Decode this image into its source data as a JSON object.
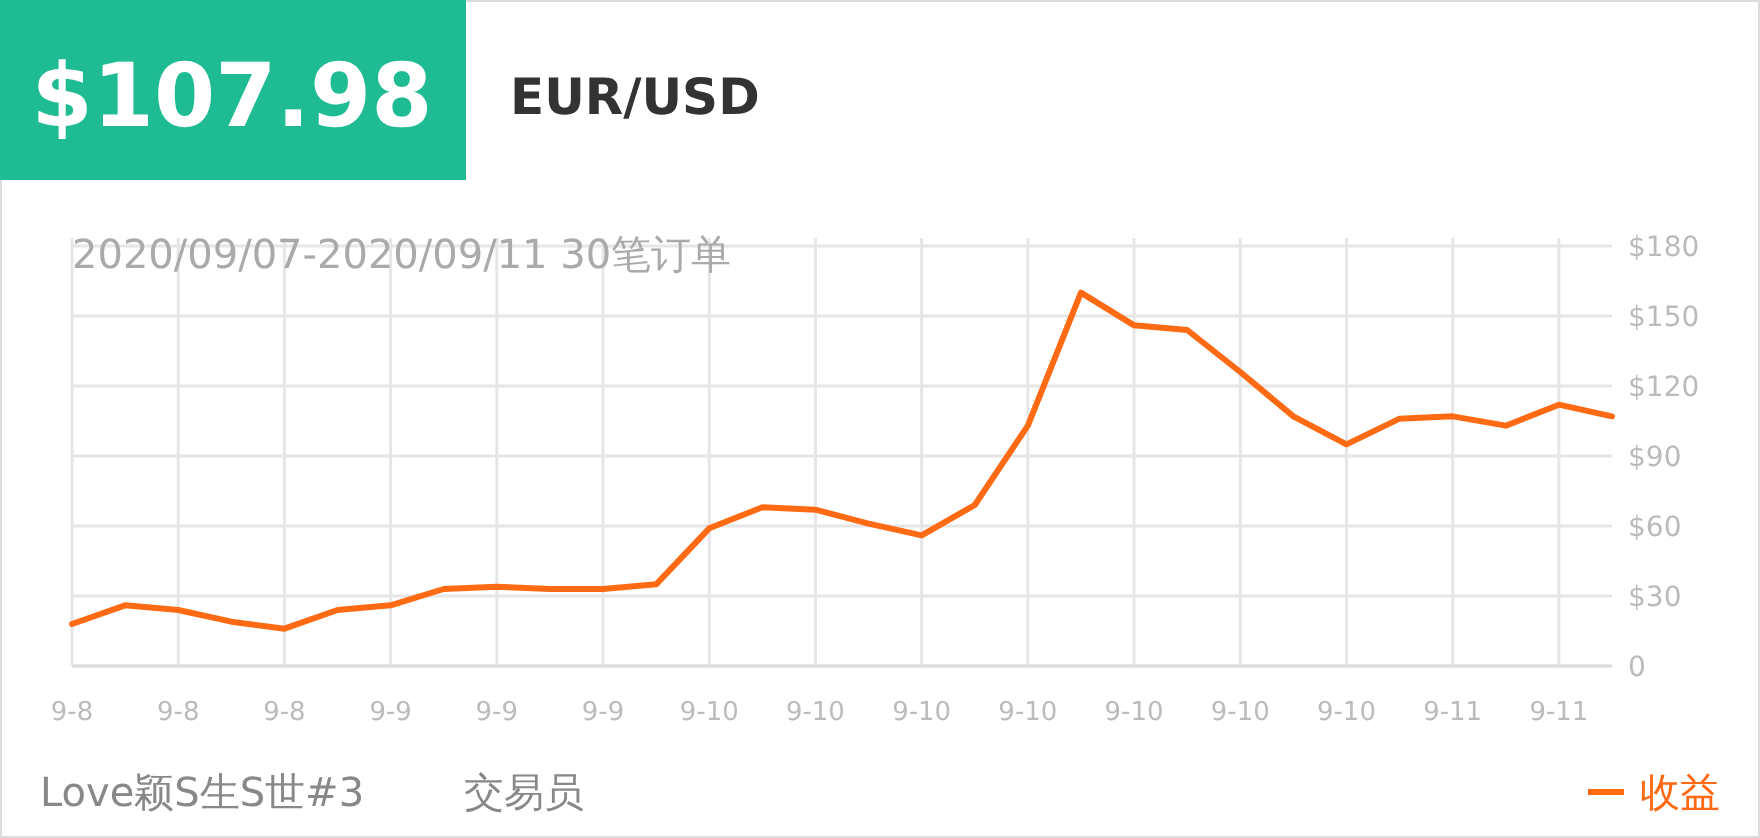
{
  "chart_data": {
    "type": "line",
    "title": "EUR/USD",
    "subtitle": "2020/09/07-2020/09/11 30笔订单",
    "annotations": [
      "$107.98",
      "Love颖S生S世#3",
      "交易员"
    ],
    "categories": [
      "9-8",
      null,
      "9-8",
      null,
      "9-8",
      null,
      "9-9",
      null,
      "9-9",
      null,
      "9-9",
      null,
      "9-10",
      null,
      "9-10",
      null,
      "9-10",
      null,
      "9-10",
      null,
      "9-10",
      null,
      "9-10",
      null,
      "9-10",
      null,
      "9-11",
      null,
      "9-11",
      null
    ],
    "series": [
      {
        "name": "收益",
        "color": "#ff6a13",
        "values": [
          18,
          26,
          24,
          19,
          16,
          24,
          26,
          33,
          34,
          33,
          33,
          35,
          59,
          68,
          67,
          61,
          56,
          69,
          103,
          160,
          146,
          144,
          126,
          107,
          95,
          106,
          107,
          103,
          112,
          107
        ]
      }
    ],
    "ylim": [
      0,
      180
    ],
    "yticks": [
      0,
      {
        "value": 30,
        "label": "$30"
      },
      {
        "value": 60,
        "label": "$60"
      },
      {
        "value": 90,
        "label": "$90"
      },
      {
        "value": 120,
        "label": "$120"
      },
      {
        "value": 150,
        "label": "$150"
      },
      {
        "value": 180,
        "label": "$180"
      }
    ],
    "grid": true,
    "legend": "bottom right",
    "marker": "none",
    "line_style": "solid"
  }
}
